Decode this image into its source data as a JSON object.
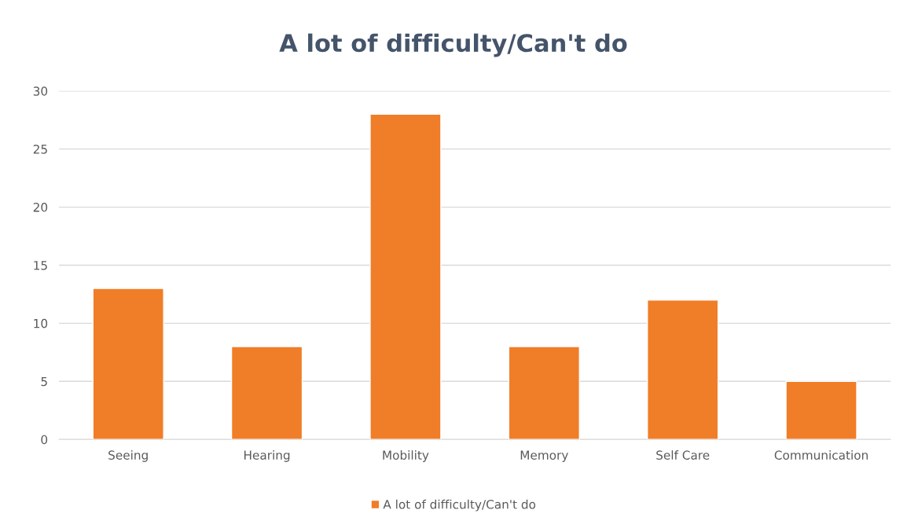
{
  "chart_data": {
    "type": "bar",
    "title": "A lot of difficulty/Can't do",
    "categories": [
      "Seeing",
      "Hearing",
      "Mobility",
      "Memory",
      "Self Care",
      "Communication"
    ],
    "series": [
      {
        "name": "A lot of difficulty/Can't do",
        "color": "#f07d28",
        "values": [
          13,
          8,
          28,
          8,
          12,
          5
        ]
      }
    ],
    "ylim": [
      0,
      30
    ],
    "yticks": [
      0,
      5,
      10,
      15,
      20,
      25,
      30
    ],
    "grid": "y",
    "legend": "bottom"
  }
}
